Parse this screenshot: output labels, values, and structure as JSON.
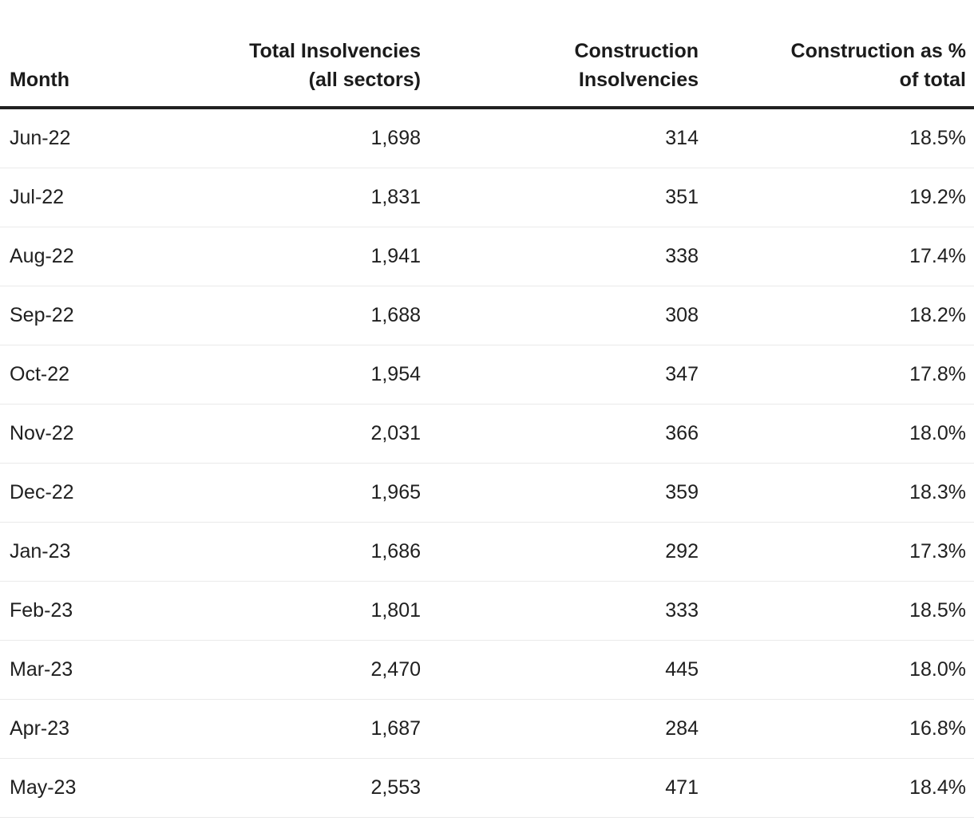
{
  "table": {
    "columns": [
      {
        "id": "month",
        "label": "Month",
        "align": "left"
      },
      {
        "id": "total",
        "label": "Total Insolvencies\n(all sectors)",
        "align": "right"
      },
      {
        "id": "construction",
        "label": "Construction\nInsolvencies",
        "align": "right"
      },
      {
        "id": "pct",
        "label": "Construction as %\nof total",
        "align": "right"
      }
    ],
    "rows": [
      {
        "month": "Jun-22",
        "total": "1,698",
        "construction": "314",
        "pct": "18.5%"
      },
      {
        "month": "Jul-22",
        "total": "1,831",
        "construction": "351",
        "pct": "19.2%"
      },
      {
        "month": "Aug-22",
        "total": "1,941",
        "construction": "338",
        "pct": "17.4%"
      },
      {
        "month": "Sep-22",
        "total": "1,688",
        "construction": "308",
        "pct": "18.2%"
      },
      {
        "month": "Oct-22",
        "total": "1,954",
        "construction": "347",
        "pct": "17.8%"
      },
      {
        "month": "Nov-22",
        "total": "2,031",
        "construction": "366",
        "pct": "18.0%"
      },
      {
        "month": "Dec-22",
        "total": "1,965",
        "construction": "359",
        "pct": "18.3%"
      },
      {
        "month": "Jan-23",
        "total": "1,686",
        "construction": "292",
        "pct": "17.3%"
      },
      {
        "month": "Feb-23",
        "total": "1,801",
        "construction": "333",
        "pct": "18.5%"
      },
      {
        "month": "Mar-23",
        "total": "2,470",
        "construction": "445",
        "pct": "18.0%"
      },
      {
        "month": "Apr-23",
        "total": "1,687",
        "construction": "284",
        "pct": "16.8%"
      },
      {
        "month": "May-23",
        "total": "2,553",
        "construction": "471",
        "pct": "18.4%"
      }
    ]
  },
  "chart_data": {
    "type": "table",
    "columns": [
      "Month",
      "Total Insolvencies (all sectors)",
      "Construction Insolvencies",
      "Construction as % of total"
    ],
    "months": [
      "Jun-22",
      "Jul-22",
      "Aug-22",
      "Sep-22",
      "Oct-22",
      "Nov-22",
      "Dec-22",
      "Jan-23",
      "Feb-23",
      "Mar-23",
      "Apr-23",
      "May-23"
    ],
    "series": [
      {
        "name": "Total Insolvencies (all sectors)",
        "values": [
          1698,
          1831,
          1941,
          1688,
          1954,
          2031,
          1965,
          1686,
          1801,
          2470,
          1687,
          2553
        ]
      },
      {
        "name": "Construction Insolvencies",
        "values": [
          314,
          351,
          338,
          308,
          347,
          366,
          359,
          292,
          333,
          445,
          284,
          471
        ]
      },
      {
        "name": "Construction as % of total",
        "values": [
          18.5,
          19.2,
          17.4,
          18.2,
          17.8,
          18.0,
          18.3,
          17.3,
          18.5,
          18.0,
          16.8,
          18.4
        ]
      }
    ]
  },
  "colors": {
    "background": "#ffffff",
    "text": "#1f1f1f",
    "header_rule": "#212121",
    "row_divider": "#eaeaea"
  }
}
